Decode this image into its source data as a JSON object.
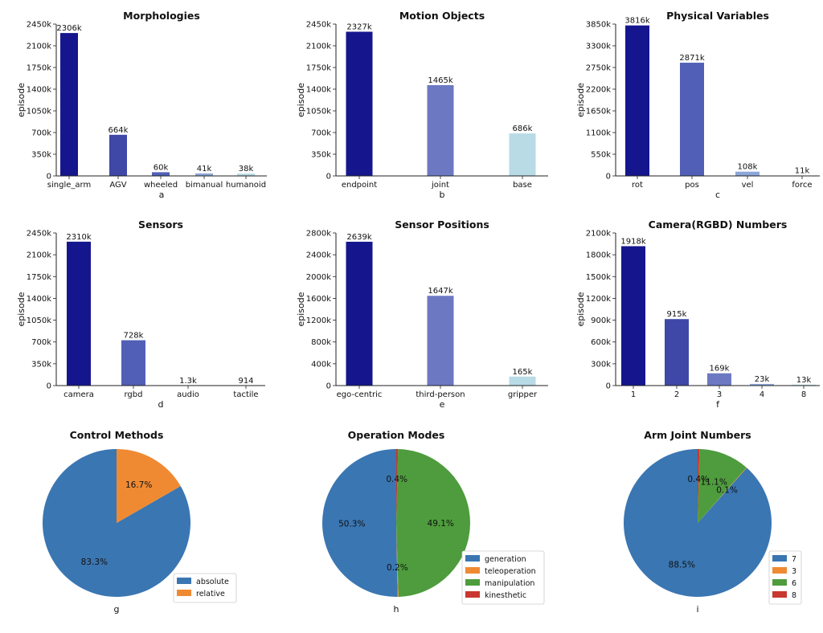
{
  "colors": {
    "navy": "#15168e",
    "royal": "#3f48a7",
    "mid": "#5160b6",
    "periwinkle": "#6c79c2",
    "sky": "#8ca6d8",
    "pale": "#b8dbe6",
    "pie_blue": "#3a76b2",
    "pie_orange": "#ef8a33",
    "pie_green": "#4e9c3d",
    "pie_red": "#c8382f"
  },
  "chart_data": [
    {
      "id": "a",
      "type": "bar",
      "title": "Morphologies",
      "ylabel": "episode",
      "panel_label": "a",
      "categories": [
        "single_arm",
        "AGV",
        "wheeled",
        "bimanual",
        "humanoid"
      ],
      "values": [
        2306,
        664,
        60,
        41,
        38
      ],
      "labels": [
        "2306k",
        "664k",
        "60k",
        "41k",
        "38k"
      ],
      "colors": [
        "navy",
        "royal",
        "mid",
        "sky",
        "pale"
      ],
      "ylim": [
        0,
        2450
      ],
      "yticks": [
        0,
        350,
        700,
        1050,
        1400,
        1750,
        2100,
        2450
      ],
      "ytick_labels": [
        "0",
        "350k",
        "700k",
        "1050k",
        "1400k",
        "1750k",
        "2100k",
        "2450k"
      ]
    },
    {
      "id": "b",
      "type": "bar",
      "title": "Motion Objects",
      "ylabel": "episode",
      "panel_label": "b",
      "categories": [
        "endpoint",
        "joint",
        "base"
      ],
      "values": [
        2327,
        1465,
        686
      ],
      "labels": [
        "2327k",
        "1465k",
        "686k"
      ],
      "colors": [
        "navy",
        "periwinkle",
        "pale"
      ],
      "ylim": [
        0,
        2450
      ],
      "yticks": [
        0,
        350,
        700,
        1050,
        1400,
        1750,
        2100,
        2450
      ],
      "ytick_labels": [
        "0",
        "350k",
        "700k",
        "1050k",
        "1400k",
        "1750k",
        "2100k",
        "2450k"
      ]
    },
    {
      "id": "c",
      "type": "bar",
      "title": "Physical Variables",
      "ylabel": "episode",
      "panel_label": "c",
      "categories": [
        "rot",
        "pos",
        "vel",
        "force"
      ],
      "values": [
        3816,
        2871,
        108,
        11
      ],
      "labels": [
        "3816k",
        "2871k",
        "108k",
        "11k"
      ],
      "colors": [
        "navy",
        "mid",
        "sky",
        "pale"
      ],
      "ylim": [
        0,
        3850
      ],
      "yticks": [
        0,
        550,
        1100,
        1650,
        2200,
        2750,
        3300,
        3850
      ],
      "ytick_labels": [
        "0",
        "550k",
        "1100k",
        "1650k",
        "2200k",
        "2750k",
        "3300k",
        "3850k"
      ]
    },
    {
      "id": "d",
      "type": "bar",
      "title": "Sensors",
      "ylabel": "episode",
      "panel_label": "d",
      "categories": [
        "camera",
        "rgbd",
        "audio",
        "tactile"
      ],
      "values": [
        2310,
        728,
        1.3,
        0.914
      ],
      "labels": [
        "2310k",
        "728k",
        "1.3k",
        "914"
      ],
      "colors": [
        "navy",
        "mid",
        "sky",
        "pale"
      ],
      "ylim": [
        0,
        2450
      ],
      "yticks": [
        0,
        350,
        700,
        1050,
        1400,
        1750,
        2100,
        2450
      ],
      "ytick_labels": [
        "0",
        "350k",
        "700k",
        "1050k",
        "1400k",
        "1750k",
        "2100k",
        "2450k"
      ]
    },
    {
      "id": "e",
      "type": "bar",
      "title": "Sensor Positions",
      "ylabel": "episode",
      "panel_label": "e",
      "categories": [
        "ego-centric",
        "third-person",
        "gripper"
      ],
      "values": [
        2639,
        1647,
        165
      ],
      "labels": [
        "2639k",
        "1647k",
        "165k"
      ],
      "colors": [
        "navy",
        "periwinkle",
        "pale"
      ],
      "ylim": [
        0,
        2800
      ],
      "yticks": [
        0,
        400,
        800,
        1200,
        1600,
        2000,
        2400,
        2800
      ],
      "ytick_labels": [
        "0",
        "400k",
        "800k",
        "1200k",
        "1600k",
        "2000k",
        "2400k",
        "2800k"
      ]
    },
    {
      "id": "f",
      "type": "bar",
      "title": "Camera(RGBD) Numbers",
      "ylabel": "episode",
      "panel_label": "f",
      "categories": [
        "1",
        "2",
        "3",
        "4",
        "8"
      ],
      "values": [
        1918,
        915,
        169,
        23,
        13
      ],
      "labels": [
        "1918k",
        "915k",
        "169k",
        "23k",
        "13k"
      ],
      "colors": [
        "navy",
        "royal",
        "periwinkle",
        "sky",
        "pale"
      ],
      "ylim": [
        0,
        2100
      ],
      "yticks": [
        0,
        300,
        600,
        900,
        1200,
        1500,
        1800,
        2100
      ],
      "ytick_labels": [
        "0",
        "300k",
        "600k",
        "900k",
        "1200k",
        "1500k",
        "1800k",
        "2100k"
      ]
    },
    {
      "id": "g",
      "type": "pie",
      "title": "Control Methods",
      "panel_label": "g",
      "categories": [
        "absolute",
        "relative"
      ],
      "values": [
        83.3,
        16.7
      ],
      "labels": [
        "83.3%",
        "16.7%"
      ],
      "colors": [
        "pie_blue",
        "pie_orange"
      ],
      "legend": "lower right"
    },
    {
      "id": "h",
      "type": "pie",
      "title": "Operation Modes",
      "panel_label": "h",
      "categories": [
        "generation",
        "teleoperation",
        "manipulation",
        "kinesthetic"
      ],
      "values": [
        50.3,
        0.2,
        49.1,
        0.4
      ],
      "labels": [
        "50.3%",
        "0.2%",
        "49.1%",
        "0.4%"
      ],
      "colors": [
        "pie_blue",
        "pie_orange",
        "pie_green",
        "pie_red"
      ],
      "legend": "lower right"
    },
    {
      "id": "i",
      "type": "pie",
      "title": "Arm Joint Numbers",
      "panel_label": "i",
      "categories": [
        "7",
        "3",
        "6",
        "8"
      ],
      "values": [
        88.5,
        0.1,
        11.1,
        0.4
      ],
      "labels": [
        "88.5%",
        "0.1%",
        "11.1%",
        "0.4%"
      ],
      "colors": [
        "pie_blue",
        "pie_orange",
        "pie_green",
        "pie_red"
      ],
      "legend": "lower right"
    }
  ]
}
